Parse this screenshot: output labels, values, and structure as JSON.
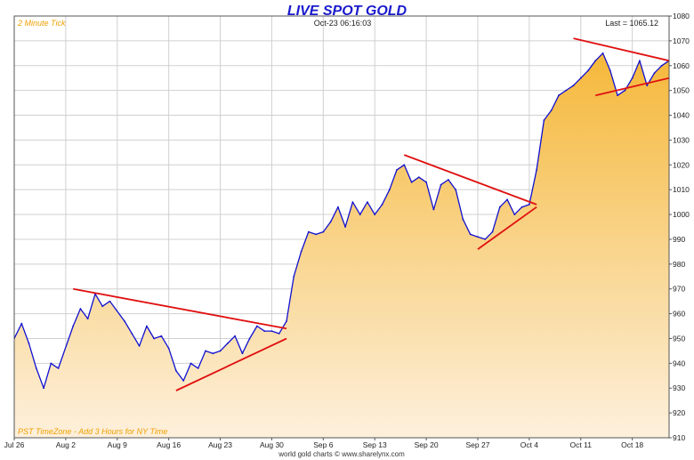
{
  "chart_data": {
    "type": "area",
    "title": "LIVE SPOT GOLD",
    "timestamp": "Oct-23  06:16:03",
    "last_label": "Last = 1065.12",
    "tick_note": "2 Minute Tick",
    "timezone_note": "PST TimeZone - Add 3 Hours for NY Time",
    "footer": "world gold charts © www.sharelynx.com",
    "ylim": [
      910,
      1080
    ],
    "y_ticks": [
      910,
      920,
      930,
      940,
      950,
      960,
      970,
      980,
      990,
      1000,
      1010,
      1020,
      1030,
      1040,
      1050,
      1060,
      1070,
      1080
    ],
    "x_range": [
      "2009-07-26",
      "2009-10-23"
    ],
    "x_ticks": [
      {
        "date": "2009-07-26",
        "label": "Jul 26"
      },
      {
        "date": "2009-08-02",
        "label": "Aug 2"
      },
      {
        "date": "2009-08-09",
        "label": "Aug 9"
      },
      {
        "date": "2009-08-16",
        "label": "Aug 16"
      },
      {
        "date": "2009-08-23",
        "label": "Aug 23"
      },
      {
        "date": "2009-08-30",
        "label": "Aug 30"
      },
      {
        "date": "2009-09-06",
        "label": "Sep 6"
      },
      {
        "date": "2009-09-13",
        "label": "Sep 13"
      },
      {
        "date": "2009-09-20",
        "label": "Sep 20"
      },
      {
        "date": "2009-09-27",
        "label": "Sep 27"
      },
      {
        "date": "2009-10-04",
        "label": "Oct 4"
      },
      {
        "date": "2009-10-11",
        "label": "Oct 11"
      },
      {
        "date": "2009-10-18",
        "label": "Oct 18"
      }
    ],
    "grid": true,
    "series": [
      {
        "color": "#1010d0",
        "fill": "gradient-gold",
        "points": [
          [
            "2009-07-26",
            950
          ],
          [
            "2009-07-27",
            956
          ],
          [
            "2009-07-28",
            948
          ],
          [
            "2009-07-29",
            938
          ],
          [
            "2009-07-30",
            930
          ],
          [
            "2009-07-31",
            940
          ],
          [
            "2009-08-01",
            938
          ],
          [
            "2009-08-03",
            955
          ],
          [
            "2009-08-04",
            962
          ],
          [
            "2009-08-05",
            958
          ],
          [
            "2009-08-06",
            968
          ],
          [
            "2009-08-07",
            963
          ],
          [
            "2009-08-08",
            965
          ],
          [
            "2009-08-10",
            957
          ],
          [
            "2009-08-11",
            952
          ],
          [
            "2009-08-12",
            947
          ],
          [
            "2009-08-13",
            955
          ],
          [
            "2009-08-14",
            950
          ],
          [
            "2009-08-15",
            951
          ],
          [
            "2009-08-16",
            946
          ],
          [
            "2009-08-17",
            937
          ],
          [
            "2009-08-18",
            933
          ],
          [
            "2009-08-19",
            940
          ],
          [
            "2009-08-20",
            938
          ],
          [
            "2009-08-21",
            945
          ],
          [
            "2009-08-22",
            944
          ],
          [
            "2009-08-23",
            945
          ],
          [
            "2009-08-24",
            948
          ],
          [
            "2009-08-25",
            951
          ],
          [
            "2009-08-26",
            944
          ],
          [
            "2009-08-27",
            950
          ],
          [
            "2009-08-28",
            955
          ],
          [
            "2009-08-29",
            953
          ],
          [
            "2009-08-30",
            953
          ],
          [
            "2009-08-31",
            952
          ],
          [
            "2009-09-01",
            957
          ],
          [
            "2009-09-02",
            975
          ],
          [
            "2009-09-03",
            985
          ],
          [
            "2009-09-04",
            993
          ],
          [
            "2009-09-05",
            992
          ],
          [
            "2009-09-06",
            993
          ],
          [
            "2009-09-07",
            997
          ],
          [
            "2009-09-08",
            1003
          ],
          [
            "2009-09-09",
            995
          ],
          [
            "2009-09-10",
            1005
          ],
          [
            "2009-09-11",
            1000
          ],
          [
            "2009-09-12",
            1005
          ],
          [
            "2009-09-13",
            1000
          ],
          [
            "2009-09-14",
            1004
          ],
          [
            "2009-09-15",
            1010
          ],
          [
            "2009-09-16",
            1018
          ],
          [
            "2009-09-17",
            1020
          ],
          [
            "2009-09-18",
            1013
          ],
          [
            "2009-09-19",
            1015
          ],
          [
            "2009-09-20",
            1013
          ],
          [
            "2009-09-21",
            1002
          ],
          [
            "2009-09-22",
            1012
          ],
          [
            "2009-09-23",
            1014
          ],
          [
            "2009-09-24",
            1010
          ],
          [
            "2009-09-25",
            998
          ],
          [
            "2009-09-26",
            992
          ],
          [
            "2009-09-27",
            991
          ],
          [
            "2009-09-28",
            990
          ],
          [
            "2009-09-29",
            993
          ],
          [
            "2009-09-30",
            1003
          ],
          [
            "2009-10-01",
            1006
          ],
          [
            "2009-10-02",
            1000
          ],
          [
            "2009-10-03",
            1003
          ],
          [
            "2009-10-04",
            1004
          ],
          [
            "2009-10-05",
            1018
          ],
          [
            "2009-10-06",
            1038
          ],
          [
            "2009-10-07",
            1042
          ],
          [
            "2009-10-08",
            1048
          ],
          [
            "2009-10-09",
            1050
          ],
          [
            "2009-10-10",
            1052
          ],
          [
            "2009-10-11",
            1055
          ],
          [
            "2009-10-12",
            1058
          ],
          [
            "2009-10-13",
            1062
          ],
          [
            "2009-10-14",
            1065
          ],
          [
            "2009-10-15",
            1058
          ],
          [
            "2009-10-16",
            1048
          ],
          [
            "2009-10-17",
            1050
          ],
          [
            "2009-10-18",
            1055
          ],
          [
            "2009-10-19",
            1062
          ],
          [
            "2009-10-20",
            1052
          ],
          [
            "2009-10-21",
            1057
          ],
          [
            "2009-10-22",
            1060
          ],
          [
            "2009-10-23",
            1062
          ]
        ]
      }
    ],
    "trendlines": [
      {
        "color": "#e01010",
        "from": [
          "2009-08-03",
          970
        ],
        "to": [
          "2009-09-01",
          954
        ]
      },
      {
        "color": "#e01010",
        "from": [
          "2009-08-17",
          929
        ],
        "to": [
          "2009-09-01",
          950
        ]
      },
      {
        "color": "#e01010",
        "from": [
          "2009-09-17",
          1024
        ],
        "to": [
          "2009-10-05",
          1004
        ]
      },
      {
        "color": "#e01010",
        "from": [
          "2009-09-27",
          986
        ],
        "to": [
          "2009-10-05",
          1003
        ]
      },
      {
        "color": "#e01010",
        "from": [
          "2009-10-10",
          1071
        ],
        "to": [
          "2009-10-23",
          1062
        ]
      },
      {
        "color": "#e01010",
        "from": [
          "2009-10-13",
          1048
        ],
        "to": [
          "2009-10-23",
          1055
        ]
      }
    ]
  },
  "colors": {
    "title": "#1a1acc",
    "note_orange": "#f0a000",
    "plot_border": "#555555",
    "grid": "#d0d0d0",
    "fill_top": "#f5b83a",
    "fill_bottom": "#fdf0dc"
  }
}
